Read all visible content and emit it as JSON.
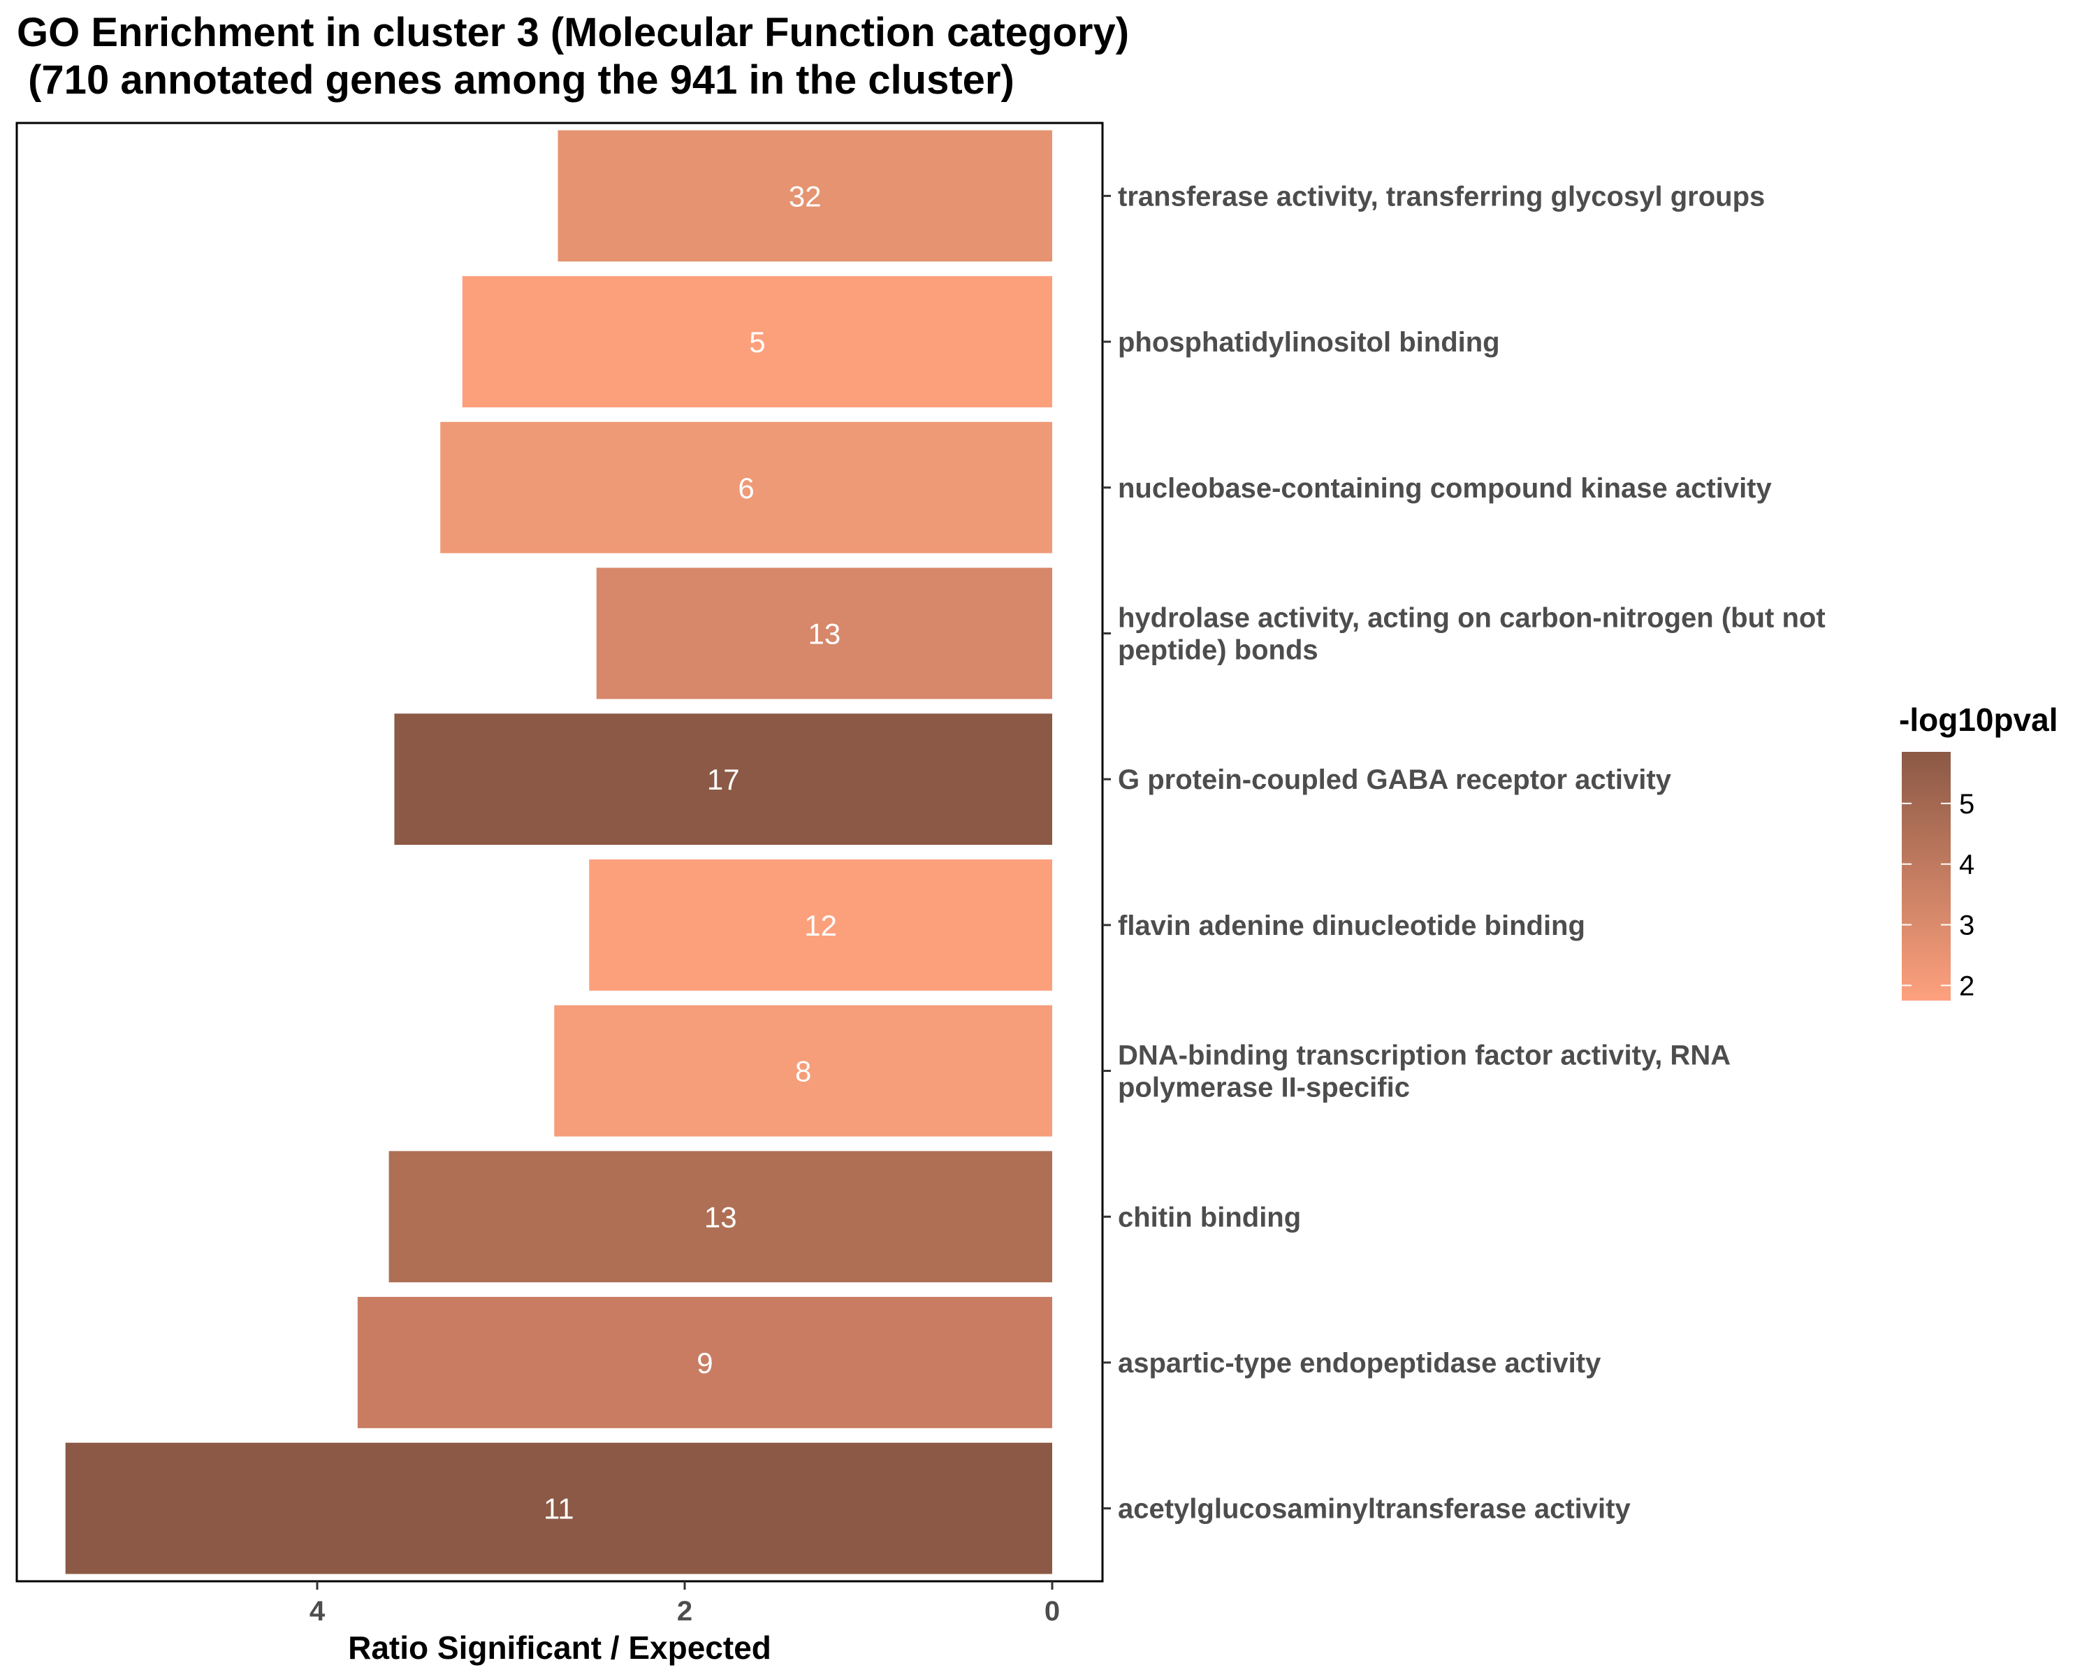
{
  "chart_data": {
    "type": "bar",
    "orientation": "horizontal",
    "title_lines": [
      "GO Enrichment in cluster 3 (Molecular Function category)",
      " (710 annotated genes among the 941 in the cluster)"
    ],
    "xlabel": "Ratio Significant / Expected",
    "ylabel": "",
    "x_reversed": true,
    "xlim": [
      0,
      5.53
    ],
    "xticks": [
      {
        "value": 4,
        "label": "4"
      },
      {
        "value": 2,
        "label": "2"
      },
      {
        "value": 0,
        "label": "0"
      }
    ],
    "y_axis_side": "right",
    "grid": false,
    "categories": [
      [
        "transferase activity, transferring glycosyl groups"
      ],
      [
        "phosphatidylinositol binding"
      ],
      [
        "nucleobase-containing compound kinase activity"
      ],
      [
        "hydrolase activity, acting on carbon-nitrogen (but not",
        "peptide) bonds"
      ],
      [
        "G protein-coupled GABA receptor activity"
      ],
      [
        "flavin adenine dinucleotide binding"
      ],
      [
        "DNA-binding transcription factor activity, RNA",
        "polymerase II-specific"
      ],
      [
        "chitin binding"
      ],
      [
        "aspartic-type endopeptidase activity"
      ],
      [
        "acetylglucosaminyltransferase activity"
      ]
    ],
    "values": [
      2.69,
      3.21,
      3.33,
      2.48,
      3.58,
      2.52,
      2.71,
      3.61,
      3.78,
      5.37
    ],
    "bar_labels": [
      "32",
      "5",
      "6",
      "13",
      "17",
      "12",
      "8",
      "13",
      "9",
      "11"
    ],
    "colors": [
      "#e59370",
      "#fca07c",
      "#ef9a76",
      "#d7876a",
      "#8b5945",
      "#fca07c",
      "#f69d79",
      "#ae6f55",
      "#c97c62",
      "#8b5945"
    ],
    "legend": {
      "title": "-log10pval",
      "placement": "right",
      "min": 1.75,
      "max": 5.85,
      "color_low": "#fea17e",
      "color_high": "#8b5945",
      "ticks": [
        {
          "value": 5,
          "label": "5"
        },
        {
          "value": 4,
          "label": "4"
        },
        {
          "value": 3,
          "label": "3"
        },
        {
          "value": 2,
          "label": "2"
        }
      ]
    }
  }
}
